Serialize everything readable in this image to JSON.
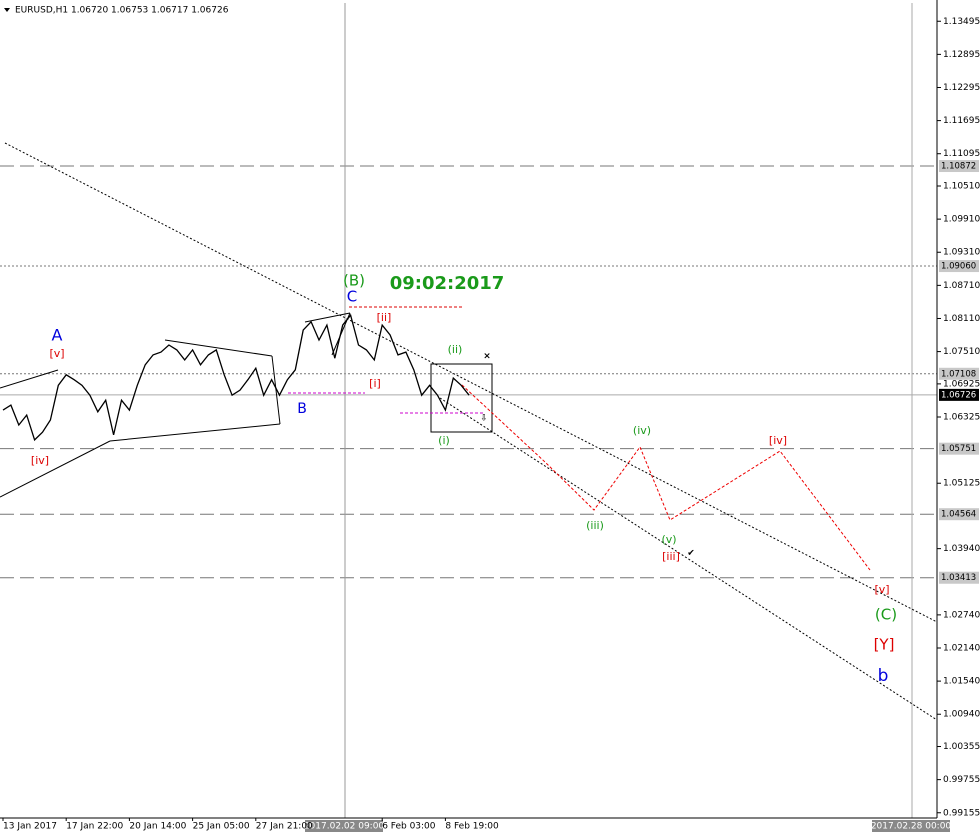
{
  "chart_data": {
    "type": "line",
    "title": "EURUSD,H1  1.06720 1.06753 1.06717 1.06726",
    "categories": [
      "13 Jan 2017",
      null,
      null,
      null,
      null,
      null,
      null,
      null,
      "17 Jan 22:00",
      null,
      null,
      null,
      null,
      null,
      null,
      null,
      "20 Jan 14:00",
      null,
      null,
      null,
      null,
      null,
      null,
      null,
      "25 Jan 05:00",
      null,
      null,
      null,
      null,
      null,
      null,
      null,
      "27 Jan 21:00",
      null,
      null,
      null,
      null,
      null,
      null,
      null,
      null,
      null,
      null,
      null,
      null,
      null,
      null,
      null,
      "6 Feb 03:00",
      null,
      null,
      null,
      null,
      null,
      null,
      null,
      "8 Feb 19:00",
      null,
      null,
      null
    ],
    "series": [
      {
        "name": "EURUSD,H1",
        "color": "#000000",
        "values": [
          1.0645,
          1.0654,
          1.0618,
          1.0636,
          1.0591,
          1.0605,
          1.0627,
          1.069,
          1.0709,
          1.07,
          1.069,
          1.0672,
          1.0642,
          1.0663,
          1.06,
          1.0663,
          1.0645,
          1.069,
          1.0727,
          1.0745,
          1.075,
          1.0763,
          1.0754,
          1.0736,
          1.0754,
          1.0727,
          1.0745,
          1.0754,
          1.0709,
          1.0672,
          1.0681,
          1.07,
          1.0721,
          1.0672,
          1.07,
          1.0672,
          1.07,
          1.0718,
          1.079,
          1.0805,
          1.0772,
          1.0799,
          1.0739,
          1.0799,
          1.0817,
          1.0763,
          1.0754,
          1.0736,
          1.0799,
          1.0781,
          1.0745,
          1.075,
          1.0718,
          1.0672,
          1.069,
          1.0672,
          1.0645,
          1.0703,
          1.069,
          1.0672
        ]
      }
    ],
    "ylim": [
      0.9906,
      1.1388
    ],
    "yticks": [
      1.13495,
      1.12895,
      1.12295,
      1.11695,
      1.11095,
      {
        "value": 1.1051,
        "label": "1.10510"
      },
      {
        "value": 1.0991,
        "label": "1.09910"
      },
      {
        "value": 1.0931,
        "label": "1.09310"
      },
      {
        "value": 1.0871,
        "label": "1.08710"
      },
      {
        "value": 1.0811,
        "label": "1.08110"
      },
      {
        "value": 1.0751,
        "label": "1.07510"
      },
      1.06925,
      1.06325,
      1.05125,
      {
        "value": 1.0394,
        "label": "1.03940"
      },
      {
        "value": 1.0274,
        "label": "1.02740"
      },
      {
        "value": 1.0214,
        "label": "1.02140"
      },
      {
        "value": 1.0154,
        "label": "1.01540"
      },
      {
        "value": 1.0094,
        "label": "1.00940"
      },
      1.00355,
      0.99755,
      0.99155
    ],
    "levels": [
      1.10872,
      {
        "value": 1.0906,
        "label": "1.09060"
      },
      1.07108,
      1.06726,
      1.05751,
      1.04564,
      1.03413
    ],
    "level_styles": [
      "dashed",
      "dotted",
      "dotted",
      "current",
      "dashed",
      "dashed",
      "dashed"
    ],
    "crosshair_time": "2017.02.02 09:00",
    "end_time": "2017.02.28 00:00",
    "annotation": "09:02:2017",
    "wave_labels": [
      "A",
      "[v]",
      "[iv]",
      "B",
      "(B)",
      "C",
      "[ii]",
      "[i]",
      "(ii)",
      "(i)",
      "(iii)",
      "(iv)",
      "(v)",
      "[iii]",
      "[iv]",
      "[v]",
      "(C)",
      "[Y]",
      "b"
    ]
  }
}
